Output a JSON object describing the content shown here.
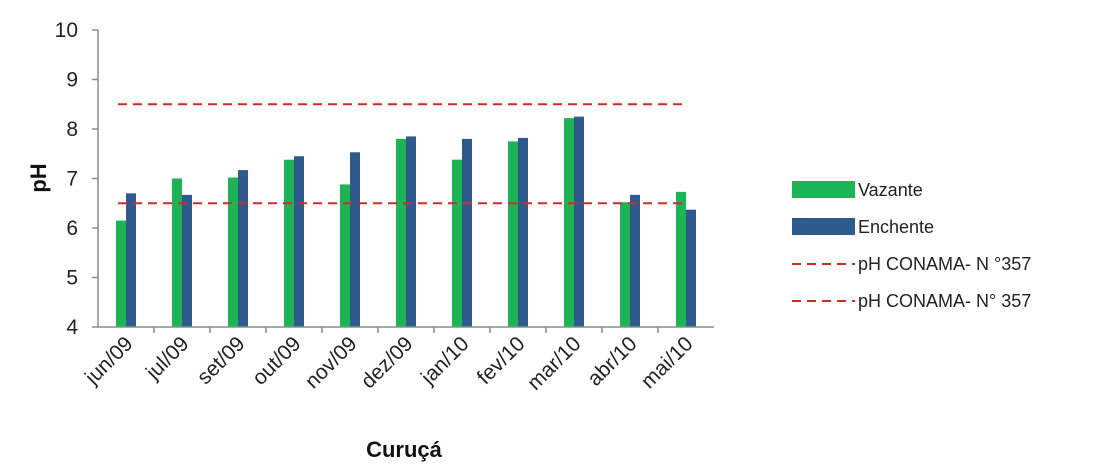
{
  "chart_data": {
    "type": "bar",
    "title": "",
    "xlabel": "Curuçá",
    "ylabel": "pH",
    "ylim": [
      4,
      10
    ],
    "yticks": [
      4,
      5,
      6,
      7,
      8,
      9,
      10
    ],
    "categories": [
      "jun/09",
      "jul/09",
      "set/09",
      "out/09",
      "nov/09",
      "dez/09",
      "jan/10",
      "fev/10",
      "mar/10",
      "abr/10",
      "mai/10"
    ],
    "series": [
      {
        "name": "Vazante",
        "color": "#1fb357",
        "values": [
          6.15,
          7.0,
          7.02,
          7.38,
          6.88,
          7.8,
          7.38,
          7.75,
          8.22,
          6.52,
          6.73
        ]
      },
      {
        "name": "Enchente",
        "color": "#2e5a8e",
        "values": [
          6.7,
          6.67,
          7.17,
          7.45,
          7.53,
          7.85,
          7.8,
          7.82,
          8.25,
          6.67,
          6.37
        ]
      }
    ],
    "reference_lines": [
      {
        "name": "pH CONAMA- N °357",
        "value": 8.5,
        "color": "#d12a2a",
        "style": "dashed"
      },
      {
        "name": "pH CONAMA- N° 357",
        "value": 6.5,
        "color": "#d12a2a",
        "style": "dashed"
      }
    ],
    "legend_position": "right",
    "grid": false
  }
}
